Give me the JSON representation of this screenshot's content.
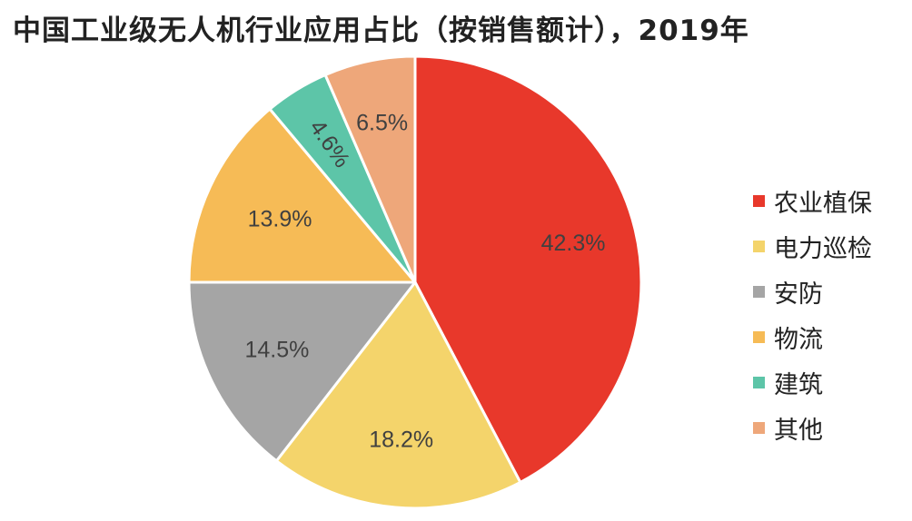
{
  "chart_data": {
    "type": "pie",
    "title": "中国工业级无人机行业应用占比（按销售额计），2019年",
    "categories": [
      "农业植保",
      "电力巡检",
      "安防",
      "物流",
      "建筑",
      "其他"
    ],
    "values": [
      42.3,
      18.2,
      14.5,
      13.9,
      4.6,
      6.5
    ],
    "labels": [
      "42.3%",
      "18.2%",
      "14.5%",
      "13.9%",
      "4.6%",
      "6.5%"
    ],
    "colors": [
      "#E8382B",
      "#F4D46B",
      "#A5A5A5",
      "#F6BB56",
      "#5DC5A8",
      "#EEA77A"
    ],
    "start_angle": "12 o'clock",
    "direction": "clockwise",
    "legend_position": "right"
  }
}
